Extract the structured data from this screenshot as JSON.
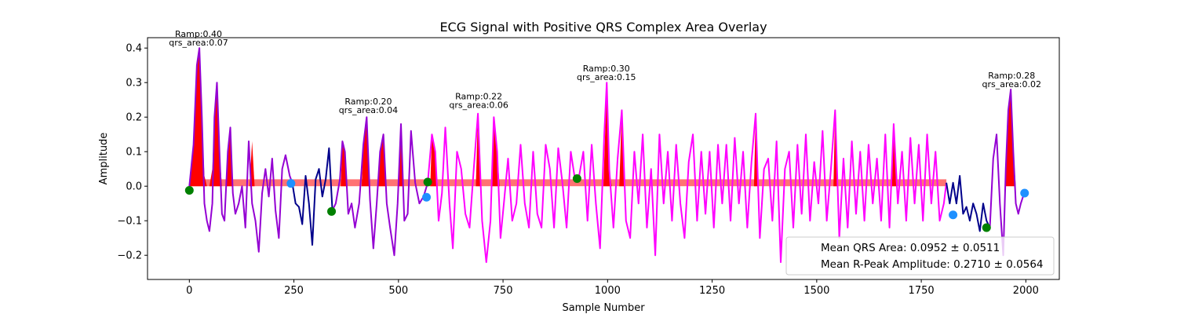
{
  "chart_data": {
    "type": "line",
    "title": "ECG Signal with Positive QRS Complex Area Overlay",
    "xlabel": "Sample Number",
    "ylabel": "Amplitude",
    "xlim": [
      -100,
      2080
    ],
    "ylim": [
      -0.27,
      0.43
    ],
    "xticks": [
      0,
      250,
      500,
      750,
      1000,
      1250,
      1500,
      1750,
      2000
    ],
    "yticks": [
      -0.2,
      -0.1,
      0.0,
      0.1,
      0.2,
      0.3,
      0.4
    ],
    "ytick_labels": [
      "−0.2",
      "−0.1",
      "0.0",
      "0.1",
      "0.2",
      "0.3",
      "0.4"
    ],
    "grid": false,
    "legend_position": "bottom-right",
    "colors": {
      "signal_base": "#00008b",
      "signal_overlay": "#9400d3",
      "signal_overlay_2": "#ff00ff",
      "qrs_fill": "#ff0000",
      "start_marker": "#008000",
      "end_marker": "#1e90ff"
    },
    "signal_segments": [
      {
        "color": "#9400d3",
        "x": [
          0,
          10,
          18,
          24,
          30,
          36,
          42,
          48,
          55,
          60,
          66,
          72,
          78,
          84,
          92,
          98,
          104,
          110,
          118,
          126,
          134,
          142,
          150,
          158,
          166,
          174,
          182,
          190,
          198,
          206,
          214,
          222,
          230,
          240,
          246
        ],
        "y": [
          0.0,
          0.12,
          0.35,
          0.4,
          0.2,
          -0.05,
          -0.1,
          -0.13,
          -0.05,
          0.2,
          0.3,
          0.1,
          -0.08,
          -0.1,
          0.1,
          0.17,
          -0.02,
          -0.08,
          -0.05,
          0.0,
          -0.12,
          0.13,
          -0.05,
          -0.1,
          -0.19,
          -0.02,
          0.05,
          -0.03,
          0.08,
          -0.07,
          -0.15,
          0.05,
          0.09,
          0.03,
          0.01
        ]
      },
      {
        "color": "#00008b",
        "x": [
          246,
          254,
          262,
          270,
          278,
          286,
          294,
          302,
          310,
          318,
          326,
          334,
          342
        ],
        "y": [
          0.01,
          -0.05,
          -0.06,
          -0.11,
          0.03,
          -0.05,
          -0.17,
          0.02,
          0.05,
          -0.03,
          0.02,
          0.11,
          -0.07
        ]
      },
      {
        "color": "#9400d3",
        "x": [
          342,
          350,
          360,
          366,
          372,
          380,
          388,
          396,
          406,
          416,
          424,
          432,
          440,
          448,
          456,
          464,
          472,
          480,
          490,
          498,
          506,
          514,
          522,
          530,
          540,
          550,
          560,
          570
        ],
        "y": [
          -0.07,
          -0.05,
          0.02,
          0.13,
          0.1,
          -0.08,
          -0.05,
          -0.12,
          -0.05,
          0.12,
          0.2,
          -0.04,
          -0.18,
          -0.05,
          0.1,
          0.15,
          -0.05,
          -0.12,
          -0.2,
          -0.05,
          0.18,
          -0.1,
          -0.08,
          0.16,
          0.01,
          -0.05,
          -0.03,
          0.01
        ]
      },
      {
        "color": "#ff00ff",
        "x": [
          570,
          580,
          588,
          596,
          604,
          612,
          622,
          630,
          640,
          650,
          660,
          670,
          680,
          690,
          700,
          710,
          720,
          728,
          736,
          744,
          752,
          762,
          772,
          782,
          792,
          802,
          812,
          822,
          832,
          842,
          852,
          862,
          872,
          882,
          892,
          902,
          912,
          922,
          932
        ],
        "y": [
          0.01,
          0.15,
          0.1,
          -0.1,
          -0.02,
          0.17,
          -0.05,
          -0.18,
          0.1,
          0.05,
          -0.08,
          -0.12,
          0.05,
          0.21,
          -0.1,
          -0.22,
          -0.1,
          0.2,
          0.1,
          -0.15,
          -0.05,
          0.08,
          -0.1,
          -0.05,
          0.12,
          -0.05,
          -0.12,
          0.1,
          -0.08,
          -0.12,
          0.12,
          0.05,
          -0.12,
          0.11,
          0.01,
          -0.12,
          0.1,
          0.02,
          0.03
        ]
      },
      {
        "color": "#ff00ff",
        "x": [
          932,
          942,
          952,
          962,
          972,
          982,
          992,
          998,
          1004,
          1014,
          1024,
          1034,
          1044,
          1054,
          1064,
          1074,
          1084,
          1094,
          1104,
          1114,
          1124,
          1134,
          1144,
          1154,
          1164,
          1174,
          1184,
          1194,
          1204,
          1214,
          1224,
          1234,
          1244,
          1254,
          1264,
          1274,
          1284,
          1294,
          1304,
          1314,
          1324,
          1334,
          1344,
          1354,
          1364,
          1374,
          1384,
          1394,
          1404,
          1414,
          1424,
          1434,
          1444,
          1454,
          1464,
          1474,
          1484,
          1494,
          1504,
          1514,
          1524,
          1534,
          1544,
          1554,
          1564,
          1574,
          1584,
          1594,
          1604,
          1614,
          1624,
          1634,
          1644,
          1654,
          1664,
          1674,
          1684,
          1694,
          1704,
          1714,
          1724,
          1734,
          1744,
          1754,
          1764,
          1774,
          1784,
          1794,
          1804,
          1810
        ],
        "y": [
          0.03,
          0.1,
          -0.1,
          0.12,
          -0.05,
          -0.18,
          0.15,
          0.3,
          0.05,
          -0.12,
          0.08,
          0.22,
          -0.1,
          -0.15,
          0.1,
          -0.05,
          0.15,
          -0.12,
          0.05,
          -0.2,
          0.15,
          -0.05,
          0.1,
          -0.1,
          0.12,
          -0.05,
          -0.15,
          0.07,
          0.15,
          -0.1,
          0.1,
          -0.08,
          0.1,
          -0.12,
          0.12,
          -0.05,
          0.12,
          -0.1,
          0.14,
          -0.05,
          0.1,
          -0.12,
          0.07,
          0.21,
          -0.15,
          0.05,
          0.08,
          -0.1,
          0.13,
          -0.22,
          0.05,
          0.1,
          -0.12,
          0.12,
          -0.08,
          0.15,
          -0.1,
          0.07,
          -0.05,
          0.16,
          -0.1,
          0.05,
          0.22,
          -0.15,
          0.08,
          -0.12,
          0.13,
          -0.08,
          0.1,
          -0.1,
          0.12,
          -0.05,
          0.08,
          -0.1,
          0.15,
          -0.12,
          0.18,
          -0.05,
          0.1,
          -0.1,
          0.14,
          -0.05,
          0.12,
          -0.1,
          0.15,
          -0.05,
          0.1,
          -0.1,
          -0.05,
          0.01
        ]
      },
      {
        "color": "#00008b",
        "x": [
          1810,
          1818,
          1826,
          1834,
          1842,
          1850,
          1858,
          1866,
          1874,
          1882,
          1890,
          1898,
          1906,
          1914
        ],
        "y": [
          0.01,
          -0.05,
          0.01,
          -0.05,
          0.03,
          -0.08,
          -0.06,
          -0.1,
          -0.05,
          -0.08,
          -0.13,
          -0.05,
          -0.1,
          -0.12
        ]
      },
      {
        "color": "#9400d3",
        "x": [
          1914,
          1922,
          1930,
          1938,
          1946,
          1952,
          1958,
          1964,
          1970,
          1976,
          1982,
          1988,
          1996
        ],
        "y": [
          -0.12,
          0.08,
          0.15,
          -0.05,
          -0.2,
          0.05,
          0.22,
          0.28,
          0.1,
          -0.05,
          -0.08,
          -0.05,
          -0.02
        ]
      }
    ],
    "qrs_fill_regions": [
      {
        "x": [
          0,
          10,
          18,
          24,
          30,
          36,
          42
        ],
        "y": [
          0.0,
          0.12,
          0.35,
          0.4,
          0.2,
          0.03,
          0.0
        ]
      },
      {
        "x": [
          48,
          55,
          60,
          66,
          72,
          78
        ],
        "y": [
          0.0,
          0.05,
          0.2,
          0.3,
          0.1,
          0.0
        ]
      },
      {
        "x": [
          88,
          92,
          98,
          104
        ],
        "y": [
          0.0,
          0.1,
          0.17,
          0.0
        ]
      },
      {
        "x": [
          144,
          150,
          156
        ],
        "y": [
          0.0,
          0.13,
          0.0
        ]
      },
      {
        "x": [
          362,
          366,
          372,
          378
        ],
        "y": [
          0.0,
          0.13,
          0.1,
          0.0
        ]
      },
      {
        "x": [
          412,
          416,
          424,
          430
        ],
        "y": [
          0.0,
          0.12,
          0.2,
          0.0
        ]
      },
      {
        "x": [
          452,
          456,
          464,
          470
        ],
        "y": [
          0.0,
          0.1,
          0.15,
          0.0
        ]
      },
      {
        "x": [
          500,
          506,
          512
        ],
        "y": [
          0.0,
          0.18,
          0.0
        ]
      },
      {
        "x": [
          576,
          580,
          588,
          594
        ],
        "y": [
          0.0,
          0.15,
          0.1,
          0.0
        ]
      },
      {
        "x": [
          685,
          690,
          698
        ],
        "y": [
          0.0,
          0.21,
          0.0
        ]
      },
      {
        "x": [
          722,
          728,
          736,
          742
        ],
        "y": [
          0.0,
          0.2,
          0.1,
          0.0
        ]
      },
      {
        "x": [
          990,
          998,
          1004,
          1010
        ],
        "y": [
          0.0,
          0.3,
          0.05,
          0.0
        ]
      },
      {
        "x": [
          1028,
          1034,
          1040
        ],
        "y": [
          0.0,
          0.22,
          0.0
        ]
      },
      {
        "x": [
          1350,
          1354,
          1360
        ],
        "y": [
          0.0,
          0.21,
          0.0
        ]
      },
      {
        "x": [
          1540,
          1544,
          1550
        ],
        "y": [
          0.0,
          0.22,
          0.0
        ]
      },
      {
        "x": [
          1680,
          1684,
          1690
        ],
        "y": [
          0.0,
          0.18,
          0.0
        ]
      },
      {
        "x": [
          1952,
          1958,
          1964,
          1970,
          1976
        ],
        "y": [
          0.0,
          0.22,
          0.28,
          0.1,
          0.0
        ]
      }
    ],
    "qrs_baseline_band": {
      "x": [
        0,
        1810
      ],
      "y": [
        0.0,
        0.02
      ]
    },
    "start_markers": {
      "color": "#008000",
      "x": [
        0,
        340,
        570,
        927,
        1906
      ],
      "y": [
        -0.012,
        -0.073,
        0.012,
        0.022,
        -0.12
      ]
    },
    "end_markers": {
      "color": "#1e90ff",
      "x": [
        243,
        567,
        1826,
        1997
      ],
      "y": [
        0.008,
        -0.032,
        -0.083,
        -0.02
      ]
    },
    "annotations": [
      {
        "x": 22,
        "y": 0.4,
        "line1": "Ramp:0.40",
        "line2": "qrs_area:0.07"
      },
      {
        "x": 428,
        "y": 0.205,
        "line1": "Ramp:0.20",
        "line2": "qrs_area:0.04"
      },
      {
        "x": 692,
        "y": 0.22,
        "line1": "Ramp:0.22",
        "line2": "qrs_area:0.06"
      },
      {
        "x": 997,
        "y": 0.3,
        "line1": "Ramp:0.30",
        "line2": "qrs_area:0.15"
      },
      {
        "x": 1966,
        "y": 0.28,
        "line1": "Ramp:0.28",
        "line2": "qrs_area:0.02"
      }
    ],
    "legend": {
      "entries": [
        "Mean QRS Area: 0.0952 ± 0.0511",
        "Mean R-Peak Amplitude: 0.2710 ± 0.0564"
      ]
    }
  }
}
